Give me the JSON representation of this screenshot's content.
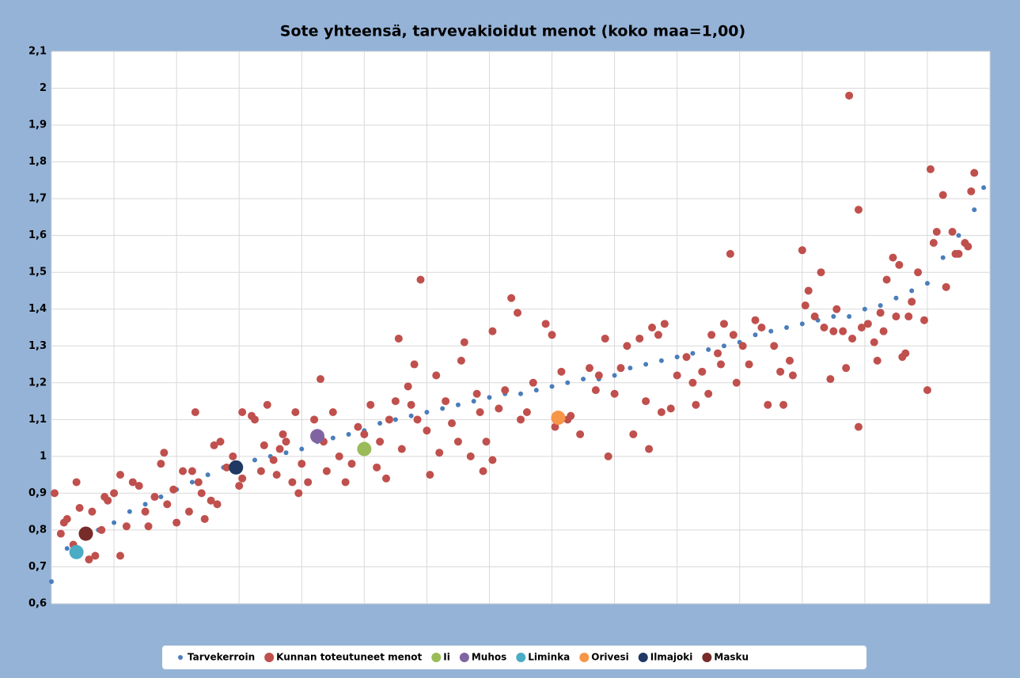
{
  "chart_data": {
    "type": "scatter",
    "title": "Sote yhteensä, tarvevakioidut menot (koko maa=1,00)",
    "xlim": [
      0,
      300
    ],
    "xticks": [
      0,
      20,
      40,
      60,
      80,
      100,
      120,
      140,
      160,
      180,
      200,
      220,
      240,
      260,
      280,
      300
    ],
    "ylim": [
      0.6,
      2.1
    ],
    "yticks": [
      {
        "value": 0.6,
        "label": "0,6"
      },
      {
        "value": 0.7,
        "label": "0,7"
      },
      {
        "value": 0.8,
        "label": "0,8"
      },
      {
        "value": 0.9,
        "label": "0,9"
      },
      1,
      {
        "value": 1.1,
        "label": "1,1"
      },
      {
        "value": 1.2,
        "label": "1,2"
      },
      {
        "value": 1.3,
        "label": "1,3"
      },
      {
        "value": 1.4,
        "label": "1,4"
      },
      {
        "value": 1.5,
        "label": "1,5"
      },
      {
        "value": 1.6,
        "label": "1,6"
      },
      {
        "value": 1.7,
        "label": "1,7"
      },
      {
        "value": 1.8,
        "label": "1,8"
      },
      {
        "value": 1.9,
        "label": "1,9"
      },
      2,
      {
        "value": 2.1,
        "label": "2,1"
      }
    ],
    "grid": true,
    "legend": "bottom",
    "series": [
      {
        "name": "Tarvekerroin",
        "color": "#4a7ebb",
        "size": 3,
        "x": [
          0,
          5,
          10,
          15,
          20,
          25,
          30,
          35,
          40,
          45,
          50,
          55,
          60,
          65,
          70,
          75,
          80,
          85,
          90,
          95,
          100,
          105,
          110,
          115,
          120,
          125,
          130,
          135,
          140,
          145,
          150,
          155,
          160,
          165,
          170,
          175,
          180,
          185,
          190,
          195,
          200,
          205,
          210,
          215,
          220,
          225,
          230,
          235,
          240,
          245,
          250,
          255,
          260,
          265,
          270,
          275,
          280,
          285,
          290,
          295,
          298
        ],
        "values": [
          0.66,
          0.75,
          0.78,
          0.8,
          0.82,
          0.85,
          0.87,
          0.89,
          0.91,
          0.93,
          0.95,
          0.97,
          0.98,
          0.99,
          1.0,
          1.01,
          1.02,
          1.04,
          1.05,
          1.06,
          1.07,
          1.09,
          1.1,
          1.11,
          1.12,
          1.13,
          1.14,
          1.15,
          1.16,
          1.17,
          1.17,
          1.18,
          1.19,
          1.2,
          1.21,
          1.21,
          1.22,
          1.24,
          1.25,
          1.26,
          1.27,
          1.28,
          1.29,
          1.3,
          1.31,
          1.33,
          1.34,
          1.35,
          1.36,
          1.37,
          1.38,
          1.38,
          1.4,
          1.41,
          1.43,
          1.45,
          1.47,
          1.54,
          1.6,
          1.67,
          1.73
        ]
      },
      {
        "name": "Kunnan toteutuneet menot",
        "color": "#c0504d",
        "size": 5,
        "x": [
          1,
          3,
          4,
          5,
          7,
          8,
          9,
          12,
          13,
          14,
          16,
          17,
          18,
          20,
          22,
          22,
          24,
          26,
          28,
          30,
          31,
          33,
          35,
          36,
          37,
          39,
          40,
          42,
          44,
          45,
          46,
          47,
          48,
          49,
          51,
          52,
          53,
          54,
          56,
          58,
          60,
          61,
          61,
          64,
          65,
          67,
          68,
          69,
          71,
          72,
          73,
          74,
          75,
          77,
          78,
          79,
          80,
          82,
          84,
          86,
          87,
          88,
          90,
          92,
          94,
          96,
          98,
          100,
          102,
          104,
          105,
          107,
          108,
          110,
          111,
          112,
          114,
          115,
          116,
          117,
          118,
          120,
          121,
          123,
          124,
          126,
          128,
          130,
          131,
          132,
          134,
          136,
          137,
          138,
          139,
          141,
          141,
          143,
          145,
          147,
          149,
          150,
          152,
          154,
          158,
          160,
          161,
          163,
          165,
          166,
          169,
          172,
          174,
          175,
          177,
          178,
          180,
          182,
          184,
          186,
          188,
          190,
          191,
          192,
          194,
          195,
          196,
          198,
          200,
          203,
          205,
          206,
          208,
          210,
          211,
          213,
          214,
          215,
          217,
          218,
          219,
          221,
          223,
          225,
          227,
          229,
          231,
          233,
          234,
          236,
          237,
          240,
          241,
          242,
          244,
          246,
          247,
          249,
          250,
          251,
          253,
          254,
          255,
          256,
          258,
          258,
          259,
          261,
          263,
          264,
          265,
          266,
          267,
          269,
          270,
          271,
          272,
          273,
          274,
          275,
          277,
          279,
          280,
          281,
          282,
          283,
          285,
          286,
          288,
          289,
          290,
          292,
          293,
          294,
          295
        ],
        "values": [
          0.9,
          0.79,
          0.82,
          0.83,
          0.76,
          0.93,
          0.86,
          0.72,
          0.85,
          0.73,
          0.8,
          0.89,
          0.88,
          0.9,
          0.73,
          0.95,
          0.81,
          0.93,
          0.92,
          0.85,
          0.81,
          0.89,
          0.98,
          1.01,
          0.87,
          0.91,
          0.82,
          0.96,
          0.85,
          0.96,
          1.12,
          0.93,
          0.9,
          0.83,
          0.88,
          1.03,
          0.87,
          1.04,
          0.97,
          1.0,
          0.92,
          0.94,
          1.12,
          1.11,
          1.1,
          0.96,
          1.03,
          1.14,
          0.99,
          0.95,
          1.02,
          1.06,
          1.04,
          0.93,
          1.12,
          0.9,
          0.98,
          0.93,
          1.1,
          1.21,
          1.04,
          0.96,
          1.12,
          1.0,
          0.93,
          0.98,
          1.08,
          1.06,
          1.14,
          0.97,
          1.04,
          0.94,
          1.1,
          1.15,
          1.32,
          1.02,
          1.19,
          1.14,
          1.25,
          1.1,
          1.48,
          1.07,
          0.95,
          1.22,
          1.01,
          1.15,
          1.09,
          1.04,
          1.26,
          1.31,
          1.0,
          1.17,
          1.12,
          0.96,
          1.04,
          1.34,
          0.99,
          1.13,
          1.18,
          1.43,
          1.39,
          1.1,
          1.12,
          1.2,
          1.36,
          1.33,
          1.08,
          1.23,
          1.1,
          1.11,
          1.06,
          1.24,
          1.18,
          1.22,
          1.32,
          1.0,
          1.17,
          1.24,
          1.3,
          1.06,
          1.32,
          1.15,
          1.02,
          1.35,
          1.33,
          1.12,
          1.36,
          1.13,
          1.22,
          1.27,
          1.2,
          1.14,
          1.23,
          1.17,
          1.33,
          1.28,
          1.25,
          1.36,
          1.55,
          1.33,
          1.2,
          1.3,
          1.25,
          1.37,
          1.35,
          1.14,
          1.3,
          1.23,
          1.14,
          1.26,
          1.22,
          1.56,
          1.41,
          1.45,
          1.38,
          1.5,
          1.35,
          1.21,
          1.34,
          1.4,
          1.34,
          1.24,
          1.98,
          1.32,
          1.67,
          1.08,
          1.35,
          1.36,
          1.31,
          1.26,
          1.39,
          1.34,
          1.48,
          1.54,
          1.38,
          1.52,
          1.27,
          1.28,
          1.38,
          1.42,
          1.5,
          1.37,
          1.18,
          1.78,
          1.58,
          1.61,
          1.71,
          1.46,
          1.61,
          1.55,
          1.55,
          1.58,
          1.57,
          1.72,
          1.77
        ]
      },
      {
        "name": "Ii",
        "color": "#9bbb59",
        "size": 9,
        "x": [
          100
        ],
        "values": [
          1.02
        ]
      },
      {
        "name": "Muhos",
        "color": "#8064a2",
        "size": 9,
        "x": [
          85
        ],
        "values": [
          1.055
        ]
      },
      {
        "name": "Liminka",
        "color": "#4bacc6",
        "size": 9,
        "x": [
          8
        ],
        "values": [
          0.74
        ]
      },
      {
        "name": "Orivesi",
        "color": "#f79646",
        "size": 9,
        "x": [
          162
        ],
        "values": [
          1.105
        ]
      },
      {
        "name": "Ilmajoki",
        "color": "#1f3864",
        "size": 9,
        "x": [
          59
        ],
        "values": [
          0.97
        ]
      },
      {
        "name": "Masku",
        "color": "#772c2a",
        "size": 9,
        "x": [
          11
        ],
        "values": [
          0.79
        ]
      }
    ]
  }
}
